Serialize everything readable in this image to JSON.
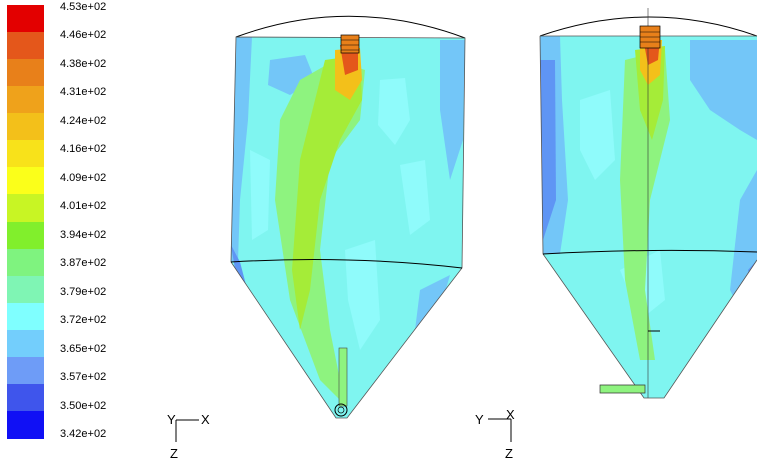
{
  "legend": {
    "colors": [
      "#e30000",
      "#e4571b",
      "#e8801a",
      "#efa21b",
      "#f3c01a",
      "#f8e21a",
      "#fbff1a",
      "#c8f524",
      "#81ef2c",
      "#7ff37f",
      "#7ff5b4",
      "#7fffff",
      "#73cefc",
      "#6e9cf7",
      "#3f55ec",
      "#1010f5"
    ],
    "labels": [
      "4.53e+02",
      "4.46e+02",
      "4.38e+02",
      "4.31e+02",
      "4.24e+02",
      "4.16e+02",
      "4.09e+02",
      "4.01e+02",
      "3.94e+02",
      "3.87e+02",
      "3.79e+02",
      "3.72e+02",
      "3.65e+02",
      "3.57e+02",
      "3.50e+02",
      "3.42e+02"
    ]
  },
  "views": {
    "left": {
      "axis_y": "Y",
      "axis_x": "X",
      "axis_z": "Z"
    },
    "right": {
      "axis_y": "Y",
      "axis_x": "X",
      "axis_z": "Z"
    }
  },
  "colors": {
    "body": "#7ff5f0",
    "light": "#8ffbfb",
    "cool": "#73c6f8",
    "cooler": "#5f95f4",
    "green": "#8ef37f",
    "greener": "#a5ec38",
    "warm": "#f3c01a",
    "hot": "#e4571b",
    "outline": "#000000"
  }
}
